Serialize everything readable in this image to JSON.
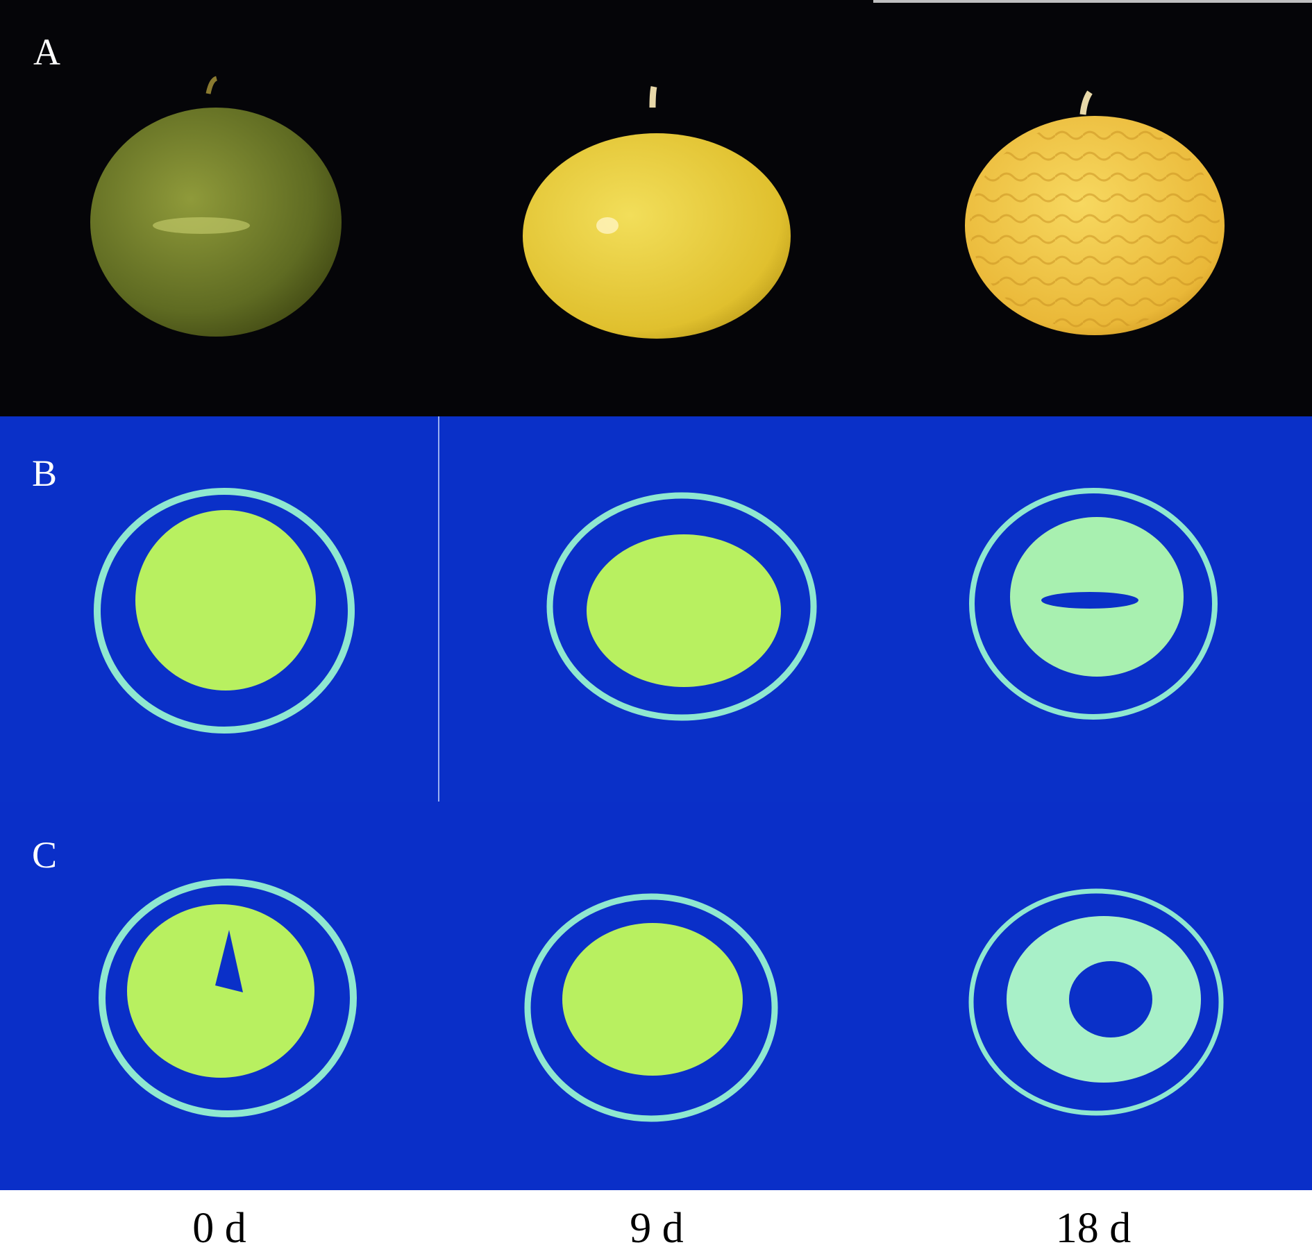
{
  "panels": {
    "a_label": "A",
    "b_label": "B",
    "c_label": "C"
  },
  "timepoints": [
    "0 d",
    "9 d",
    "18 d"
  ],
  "colors": {
    "photo_background": "#050508",
    "scan_background": "#0a2fc8",
    "fruit_green": "#6e7a2a",
    "fruit_yellow": "#e8c83a",
    "fruit_orange_yellow": "#f0c040",
    "tissue_signal": "#b8f060",
    "peel_signal": "#8fe8d0"
  }
}
